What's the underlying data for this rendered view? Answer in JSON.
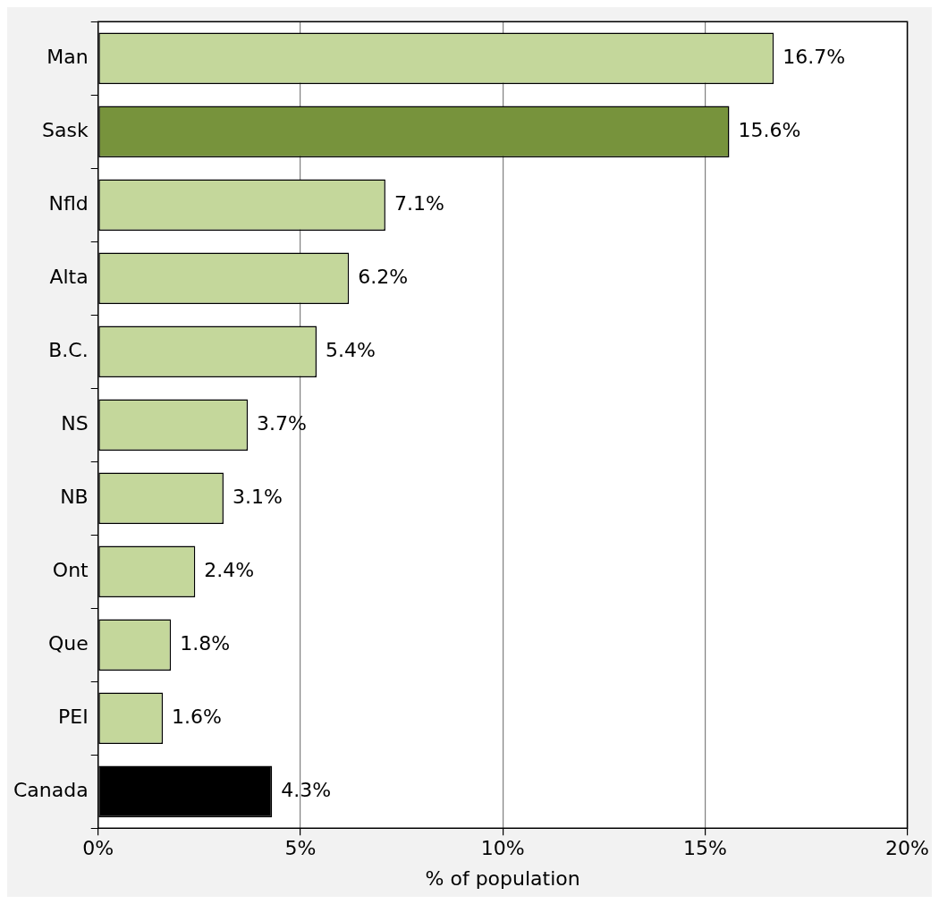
{
  "chart_data": {
    "type": "bar",
    "orientation": "horizontal",
    "xlabel": "% of population",
    "categories": [
      "Man",
      "Sask",
      "Nfld",
      "Alta",
      "B.C.",
      "NS",
      "NB",
      "Ont",
      "Que",
      "PEI",
      "Canada"
    ],
    "values": [
      16.7,
      15.6,
      7.1,
      6.2,
      5.4,
      3.7,
      3.1,
      2.4,
      1.8,
      1.6,
      4.3
    ],
    "colors": [
      "#c4d79b",
      "#77933c",
      "#c4d79b",
      "#c4d79b",
      "#c4d79b",
      "#c4d79b",
      "#c4d79b",
      "#c4d79b",
      "#c4d79b",
      "#c4d79b",
      "#000000"
    ],
    "value_labels": [
      "16.7%",
      "15.6%",
      "7.1%",
      "6.2%",
      "5.4%",
      "3.7%",
      "3.1%",
      "2.4%",
      "1.8%",
      "1.6%",
      "4.3%"
    ],
    "xlim": [
      0,
      20
    ],
    "xticks": [
      {
        "value": 0,
        "label": "0%"
      },
      {
        "value": 5,
        "label": "5%"
      },
      {
        "value": 10,
        "label": "10%"
      },
      {
        "value": 15,
        "label": "15%"
      },
      {
        "value": 20,
        "label": "20%"
      }
    ],
    "grid": "x",
    "legend": false
  }
}
